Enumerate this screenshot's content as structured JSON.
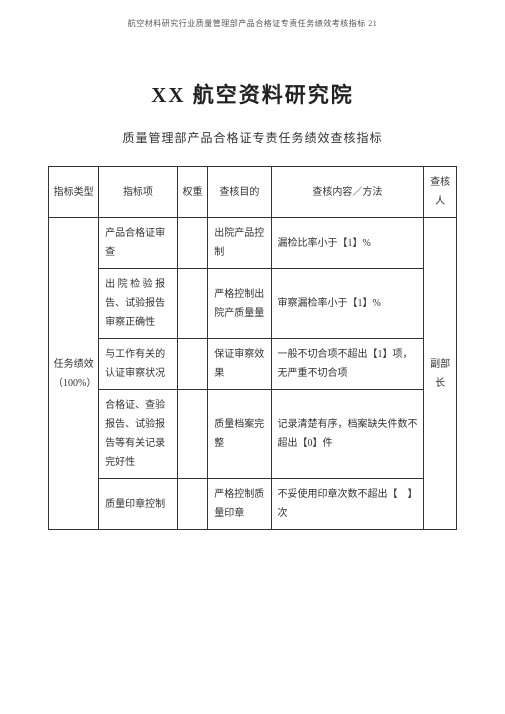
{
  "header_note": "航空材料研究行业质量管理部产品合格证专责任务绩效考核指标 21",
  "main_title": "XX 航空资料研究院",
  "sub_title": "质量管理部产品合格证专责任务绩效查核指标",
  "headers": {
    "c1": "指标类型",
    "c2": "指标项",
    "c3": "权重",
    "c4": "查核目的",
    "c5": "查核内容／方法",
    "c6": "查核人"
  },
  "col1_merged": "任务绩效（100%）",
  "col6_merged": "副部长",
  "rows": [
    {
      "item": "产品合格证审查",
      "weight": "",
      "purpose": "出院产品控制",
      "content": "漏检比率小于【1】%"
    },
    {
      "item": "出 院 检 验 报告、试验报告审察正确性",
      "weight": "",
      "purpose": "严格控制出院产质量量",
      "content": "审察漏检率小于【1】%"
    },
    {
      "item": "与工作有关的认证审察状况",
      "weight": "",
      "purpose": "保证审察效果",
      "content": "一般不切合项不超出【1】项，无严重不切合项"
    },
    {
      "item": "合格证、查验报告、试验报告等有关记录完好性",
      "weight": "",
      "purpose": "质量档案完整",
      "content": "记录清楚有序，档案缺失件数不超出【0】件"
    },
    {
      "item": "质量印章控制",
      "weight": "",
      "purpose": "严格控制质量印章",
      "content": "不妥使用印章次数不超出【　】次"
    }
  ]
}
